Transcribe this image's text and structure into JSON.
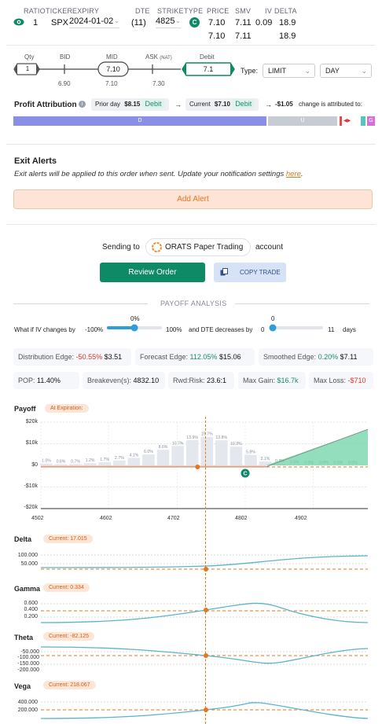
{
  "order": {
    "headers": {
      "ratio": "RATIO",
      "ticker": "TICKER",
      "expiry": "EXPIRY",
      "dte": "DTE",
      "strike": "STRIKE",
      "type": "TYPE",
      "price": "PRICE",
      "smv": "SMV",
      "iv": "IV",
      "delta": "DELTA"
    },
    "ratio": "1",
    "ticker": "SPX",
    "expiry": "2024-01-02",
    "dte": "(11)",
    "strike": "4825",
    "type": "C",
    "price1": "7.10",
    "smv1": "7.11",
    "iv": "0.09",
    "delta1": "18.9",
    "price2": "7.10",
    "smv2": "7.11",
    "delta2": "18.9"
  },
  "pricing": {
    "qty_label": "Qty",
    "qty": "1",
    "bid_label": "BID",
    "bid": "6.90",
    "mid_label": "MID",
    "mid_box": "7.10",
    "mid": "7.10",
    "ask_label": "ASK",
    "ask_nat": "(NAT)",
    "ask": "7.30",
    "debit_label": "Debit",
    "debit": "7.1",
    "type_label": "Type:",
    "order_type": "LIMIT",
    "tif": "DAY"
  },
  "profit": {
    "title": "Profit Attribution",
    "prior_label": "Prior day",
    "prior_value": "$8.15",
    "prior_tag": "Debit",
    "current_label": "Current",
    "current_value": "$7.10",
    "current_tag": "Debit",
    "change": "-$1.05",
    "change_text": "change is attributed to:",
    "bar_d": "D",
    "bar_u": "U",
    "bar_g": "G"
  },
  "exit_alerts": {
    "title": "Exit Alerts",
    "desc": "Exit alerts will be applied to this order when sent. Update your notification settings",
    "link": "here",
    "period": ".",
    "add_button": "Add Alert"
  },
  "sending": {
    "prefix": "Sending to",
    "account_name": "ORATS Paper Trading",
    "suffix": "account",
    "review_button": "Review Order",
    "copy_button": "COPY TRADE"
  },
  "payoff": {
    "title": "PAYOFF ANALYSIS",
    "iv_prefix": "What if IV changes by",
    "iv_min": "-100%",
    "iv_value": "0%",
    "iv_max": "100%",
    "dte_prefix": "and DTE decreases by",
    "dte_min": "0",
    "dte_value": "0",
    "dte_max": "11",
    "dte_unit": "days",
    "stats": [
      {
        "label": "Distribution Edge:",
        "v1": "-50.55%",
        "v2": "$3.51"
      },
      {
        "label": "Forecast Edge:",
        "v1": "112.05%",
        "v2": "$15.06"
      },
      {
        "label": "Smoothed Edge:",
        "v1": "0.20%",
        "v2": "$7.11"
      },
      {
        "label": "POP:",
        "v1": "11.40%"
      },
      {
        "label": "Breakeven(s):",
        "v1": "4832.10"
      },
      {
        "label": "Rwd:Risk:",
        "v1": "23.6:1"
      },
      {
        "label": "Max Gain:",
        "v1": "$16.7k"
      },
      {
        "label": "Max Loss:",
        "v1": "-$710"
      }
    ]
  },
  "colors": {
    "accent": "#0f8a66",
    "orange": "#e8751a",
    "purple": "#8a8fe6",
    "teal": "#5bb4c9"
  },
  "chart_data": [
    {
      "type": "bar",
      "title": "Payoff",
      "annotation": "At Expiration:",
      "yticks": [
        "$20k",
        "$10k",
        "$0",
        "-$10k",
        "-$20k"
      ],
      "ylim": [
        -20000,
        20000
      ],
      "xticks": [
        "4502",
        "4602",
        "4702",
        "4802",
        "4902"
      ],
      "xlim": [
        4502,
        4982
      ],
      "bar_labels": [
        "1.0%",
        "0.6%",
        "0.7%",
        "1.2%",
        "1.7%",
        "2.7%",
        "4.1%",
        "6.0%",
        "8.6%",
        "10.7%",
        "13.9%",
        "15.7%",
        "13.8%",
        "10.3%",
        "5.8%",
        "2.1%",
        "0.8%",
        "0.3%",
        "0.0%",
        "0.0%",
        "0.0%",
        "0.0%"
      ],
      "bar_values": [
        1.0,
        0.6,
        0.7,
        1.2,
        1.7,
        2.7,
        4.1,
        6.0,
        8.6,
        10.7,
        13.9,
        15.7,
        13.8,
        10.3,
        5.8,
        2.1,
        0.8,
        0.3,
        0.0,
        0.0,
        0.0,
        0.0
      ],
      "payoff_line": {
        "x": [
          4502,
          4832,
          4982
        ],
        "y": [
          -710,
          -710,
          16700
        ]
      },
      "current_price": 4732,
      "strike_marker": "C"
    },
    {
      "type": "line",
      "title": "Delta",
      "current": "Current:",
      "current_value": "17.015",
      "yticks": [
        "100.000",
        "50.000"
      ]
    },
    {
      "type": "line",
      "title": "Gamma",
      "current": "Current:",
      "current_value": "0.334",
      "yticks": [
        "0.600",
        "0.400",
        "0.200"
      ]
    },
    {
      "type": "line",
      "title": "Theta",
      "current": "Current:",
      "current_value": "-82.125",
      "yticks": [
        "-50.000",
        "-100.000",
        "-150.000",
        "-200.000"
      ]
    },
    {
      "type": "line",
      "title": "Vega",
      "current": "Current:",
      "current_value": "218.067",
      "yticks": [
        "400.000",
        "200.000"
      ]
    }
  ]
}
